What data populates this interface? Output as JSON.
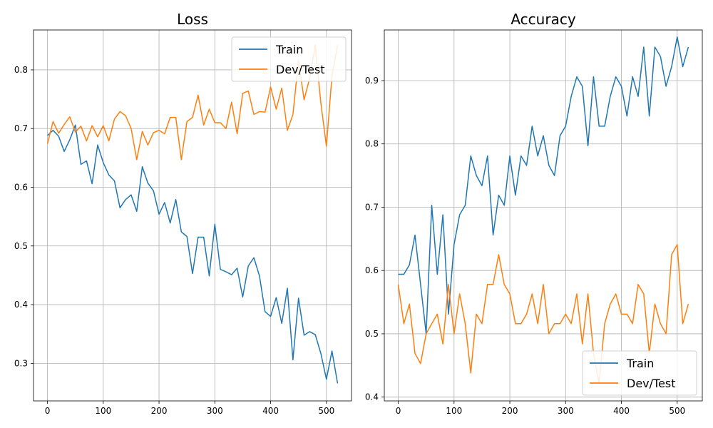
{
  "chart_data": [
    {
      "type": "line",
      "title": "Loss",
      "xlabel": "",
      "ylabel": "",
      "xlim": [
        -25,
        545
      ],
      "ylim": [
        0.236,
        0.868
      ],
      "xticks": [
        0,
        100,
        200,
        300,
        400,
        500
      ],
      "yticks": [
        0.3,
        0.4,
        0.5,
        0.6,
        0.7,
        0.8
      ],
      "ytick_labels": [
        "0.3",
        "0.4",
        "0.5",
        "0.6",
        "0.7",
        "0.8"
      ],
      "grid": true,
      "legend_position": "top-right",
      "x": [
        0,
        10,
        20,
        30,
        40,
        50,
        60,
        70,
        80,
        90,
        100,
        110,
        120,
        130,
        140,
        150,
        160,
        170,
        180,
        190,
        200,
        210,
        220,
        230,
        240,
        250,
        260,
        270,
        280,
        290,
        300,
        310,
        320,
        330,
        340,
        350,
        360,
        370,
        380,
        390,
        400,
        410,
        420,
        430,
        440,
        450,
        460,
        470,
        480,
        490,
        500,
        510,
        520
      ],
      "series": [
        {
          "name": "Train",
          "color": "#1f77b4",
          "values": [
            0.688,
            0.697,
            0.687,
            0.661,
            0.681,
            0.706,
            0.639,
            0.645,
            0.606,
            0.672,
            0.642,
            0.621,
            0.611,
            0.565,
            0.579,
            0.587,
            0.559,
            0.635,
            0.607,
            0.594,
            0.554,
            0.574,
            0.539,
            0.579,
            0.524,
            0.516,
            0.453,
            0.515,
            0.515,
            0.449,
            0.537,
            0.46,
            0.456,
            0.451,
            0.462,
            0.413,
            0.466,
            0.48,
            0.449,
            0.388,
            0.38,
            0.412,
            0.368,
            0.428,
            0.306,
            0.411,
            0.348,
            0.354,
            0.349,
            0.317,
            0.273,
            0.321,
            0.266
          ]
        },
        {
          "name": "Dev/Test",
          "color": "#ff7f0e",
          "values": [
            0.674,
            0.712,
            0.692,
            0.707,
            0.72,
            0.694,
            0.704,
            0.679,
            0.705,
            0.686,
            0.705,
            0.679,
            0.716,
            0.729,
            0.722,
            0.7,
            0.647,
            0.695,
            0.672,
            0.693,
            0.697,
            0.691,
            0.719,
            0.719,
            0.647,
            0.712,
            0.719,
            0.757,
            0.706,
            0.733,
            0.71,
            0.71,
            0.7,
            0.745,
            0.691,
            0.76,
            0.764,
            0.724,
            0.729,
            0.728,
            0.771,
            0.733,
            0.769,
            0.697,
            0.724,
            0.816,
            0.749,
            0.786,
            0.842,
            0.744,
            0.67,
            0.79,
            0.842
          ]
        }
      ]
    },
    {
      "type": "line",
      "title": "Accuracy",
      "xlabel": "",
      "ylabel": "",
      "xlim": [
        -25,
        545
      ],
      "ylim": [
        0.394,
        0.98
      ],
      "xticks": [
        0,
        100,
        200,
        300,
        400,
        500
      ],
      "yticks": [
        0.4,
        0.5,
        0.6,
        0.7,
        0.8,
        0.9
      ],
      "ytick_labels": [
        "0.4",
        "0.5",
        "0.6",
        "0.7",
        "0.8",
        "0.9"
      ],
      "grid": true,
      "legend_position": "bottom-right",
      "x": [
        0,
        10,
        20,
        30,
        40,
        50,
        60,
        70,
        80,
        90,
        100,
        110,
        120,
        130,
        140,
        150,
        160,
        170,
        180,
        190,
        200,
        210,
        220,
        230,
        240,
        250,
        260,
        270,
        280,
        290,
        300,
        310,
        320,
        330,
        340,
        350,
        360,
        370,
        380,
        390,
        400,
        410,
        420,
        430,
        440,
        450,
        460,
        470,
        480,
        490,
        500,
        510,
        520
      ],
      "series": [
        {
          "name": "Train",
          "color": "#1f77b4",
          "values": [
            0.594,
            0.594,
            0.609,
            0.656,
            0.578,
            0.5,
            0.703,
            0.594,
            0.688,
            0.531,
            0.641,
            0.688,
            0.703,
            0.781,
            0.75,
            0.734,
            0.781,
            0.656,
            0.719,
            0.703,
            0.781,
            0.719,
            0.781,
            0.766,
            0.828,
            0.781,
            0.813,
            0.766,
            0.75,
            0.813,
            0.828,
            0.875,
            0.906,
            0.891,
            0.797,
            0.906,
            0.828,
            0.828,
            0.875,
            0.906,
            0.891,
            0.844,
            0.906,
            0.875,
            0.953,
            0.844,
            0.953,
            0.938,
            0.891,
            0.922,
            0.969,
            0.922,
            0.953
          ]
        },
        {
          "name": "Dev/Test",
          "color": "#ff7f0e",
          "values": [
            0.578,
            0.516,
            0.547,
            0.469,
            0.453,
            0.5,
            0.516,
            0.531,
            0.484,
            0.578,
            0.5,
            0.563,
            0.516,
            0.438,
            0.531,
            0.516,
            0.578,
            0.578,
            0.625,
            0.578,
            0.563,
            0.516,
            0.516,
            0.531,
            0.563,
            0.516,
            0.578,
            0.5,
            0.516,
            0.516,
            0.531,
            0.516,
            0.563,
            0.484,
            0.563,
            0.469,
            0.422,
            0.516,
            0.547,
            0.563,
            0.531,
            0.531,
            0.516,
            0.578,
            0.563,
            0.469,
            0.547,
            0.516,
            0.5,
            0.625,
            0.641,
            0.516,
            0.547
          ]
        }
      ]
    }
  ]
}
